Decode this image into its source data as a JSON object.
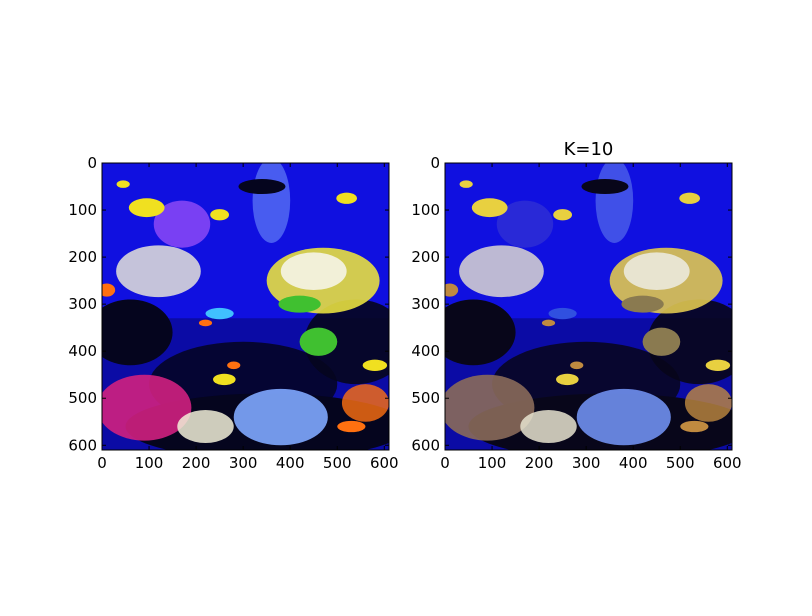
{
  "figure": {
    "panels": [
      {
        "id": "left",
        "title": "",
        "colors": {
          "bg": "#1010e0",
          "deep": "#0a0a9a",
          "dark": "#05051e",
          "yellow": "#f0e020",
          "coral_white": "#f2f0d8",
          "coral_yellow": "#e8e040",
          "green": "#40c030",
          "orange": "#ff7010",
          "magenta": "#d02080",
          "cyan": "#40c0ff",
          "lightblue": "#80a8ff",
          "violet": "#c060ff"
        },
        "x_ticks": [
          "0",
          "100",
          "200",
          "300",
          "400",
          "500",
          "600"
        ],
        "y_ticks": [
          "0",
          "100",
          "200",
          "300",
          "400",
          "500",
          "600"
        ]
      },
      {
        "id": "right",
        "title": "K=10",
        "colors": {
          "bg": "#1010e0",
          "deep": "#0a0a9a",
          "dark": "#08061a",
          "yellow": "#e8d040",
          "coral_white": "#e8e4d0",
          "coral_yellow": "#e0c850",
          "green": "#8a7a50",
          "orange": "#c08a40",
          "magenta": "#8a6a5a",
          "cyan": "#3050e0",
          "lightblue": "#7090f0",
          "violet": "#3a3ad0"
        },
        "x_ticks": [
          "0",
          "100",
          "200",
          "300",
          "400",
          "500",
          "600"
        ],
        "y_ticks": [
          "0",
          "100",
          "200",
          "300",
          "400",
          "500",
          "600"
        ]
      }
    ]
  }
}
